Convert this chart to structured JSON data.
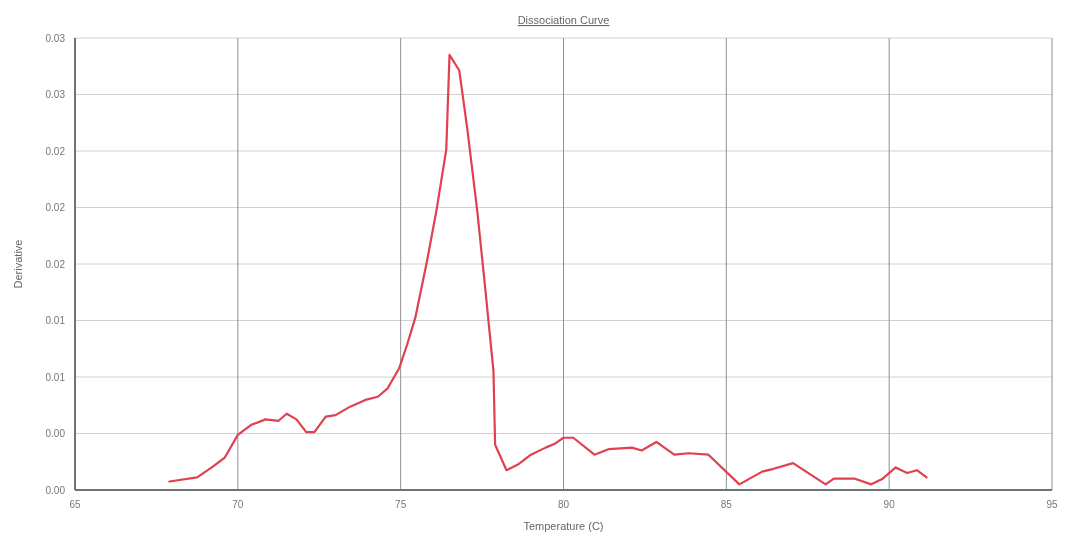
{
  "chart_data": {
    "type": "line",
    "title": "Dissociation Curve",
    "xlabel": "Temperature (C)",
    "ylabel": "Derivative",
    "xlim": [
      65,
      95
    ],
    "xticks": [
      65,
      70,
      75,
      80,
      85,
      90,
      95
    ],
    "ylim": [
      0,
      0.032
    ],
    "yticks": [
      {
        "value": 0,
        "label": "0.00"
      },
      {
        "value": 0.004,
        "label": "0.00"
      },
      {
        "value": 0.008,
        "label": "0.01"
      },
      {
        "value": 0.012,
        "label": "0.01"
      },
      {
        "value": 0.016,
        "label": "0.02"
      },
      {
        "value": 0.02,
        "label": "0.02"
      },
      {
        "value": 0.024,
        "label": "0.02"
      },
      {
        "value": 0.028,
        "label": "0.03"
      },
      {
        "value": 0.032,
        "label": "0.03"
      }
    ],
    "grid": true,
    "marker": "none",
    "line_style": "solid",
    "series": [
      {
        "color": "#e0404f",
        "x": [
          67.9,
          68.75,
          69.2,
          69.6,
          70,
          70.4,
          70.85,
          71.25,
          71.5,
          71.8,
          72.1,
          72.35,
          72.7,
          73.0,
          73.45,
          73.95,
          74.3,
          74.6,
          74.95,
          75.2,
          75.45,
          75.8,
          76.1,
          76.4,
          76.5,
          76.8,
          77.05,
          77.35,
          77.6,
          77.85,
          77.9,
          78.25,
          78.6,
          79.0,
          79.45,
          79.75,
          80.0,
          80.3,
          80.95,
          81.4,
          82.1,
          82.4,
          82.85,
          83.4,
          83.85,
          84.45,
          85.4,
          86.1,
          86.45,
          87.05,
          88.05,
          88.3,
          88.95,
          89.45,
          89.8,
          90.2,
          90.55,
          90.85,
          91.15
        ],
        "values": [
          0.0006,
          0.0009,
          0.0016,
          0.0023,
          0.0039,
          0.0046,
          0.005,
          0.0049,
          0.0054,
          0.005,
          0.0041,
          0.0041,
          0.0052,
          0.0053,
          0.0059,
          0.0064,
          0.0066,
          0.0072,
          0.0086,
          0.0103,
          0.0122,
          0.0161,
          0.0198,
          0.0241,
          0.0308,
          0.0297,
          0.0255,
          0.0198,
          0.0142,
          0.0084,
          0.0032,
          0.0014,
          0.0018,
          0.0025,
          0.003,
          0.0033,
          0.0037,
          0.0037,
          0.0025,
          0.0029,
          0.003,
          0.0028,
          0.0034,
          0.0025,
          0.0026,
          0.0025,
          0.0004,
          0.0013,
          0.0015,
          0.0019,
          0.0004,
          0.0008,
          0.0008,
          0.0004,
          0.0008,
          0.0016,
          0.0012,
          0.0014,
          0.0009
        ]
      }
    ]
  }
}
